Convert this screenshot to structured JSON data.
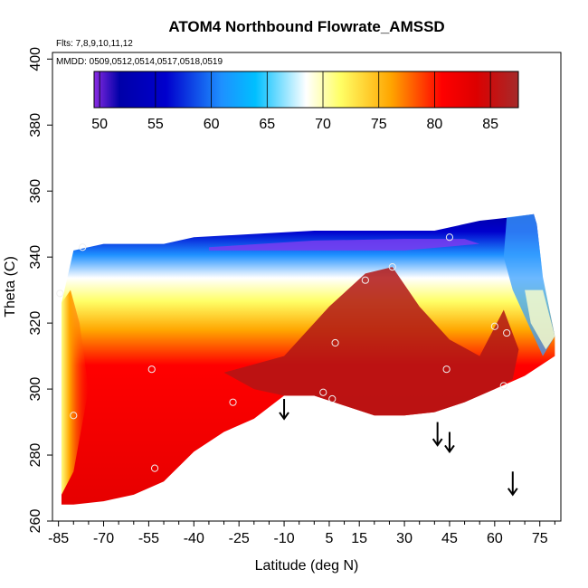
{
  "chart_data": {
    "type": "heatmap",
    "title": "ATOM4 Northbound Flowrate_AMSSD",
    "flights_note": "Flts: 7,8,9,10,11,12",
    "dates_note": "MMDD: 0509,0512,0514,0517,0518,0519",
    "xlabel": "Latitude (deg N)",
    "ylabel": "Theta (C)",
    "xlim": [
      -87,
      82
    ],
    "ylim": [
      260,
      402
    ],
    "x_ticks": [
      -85,
      -70,
      -55,
      -40,
      -25,
      -10,
      5,
      15,
      30,
      45,
      60,
      75
    ],
    "y_ticks": [
      260,
      280,
      300,
      320,
      340,
      360,
      380,
      400
    ],
    "colorbar": {
      "range": [
        49.5,
        87.5
      ],
      "ticks": [
        50,
        55,
        60,
        65,
        70,
        75,
        80,
        85
      ],
      "colors": [
        "#8a2be2",
        "#0000a8",
        "#0000cd",
        "#1e90ff",
        "#00bfff",
        "#ffffff",
        "#ffff66",
        "#ffa500",
        "#ff0000",
        "#dd0000",
        "#a52a2a"
      ]
    },
    "field_boundary": {
      "top": [
        [
          -84,
          326
        ],
        [
          -80,
          342
        ],
        [
          -70,
          344
        ],
        [
          -50,
          344
        ],
        [
          -40,
          346
        ],
        [
          -20,
          347
        ],
        [
          0,
          348
        ],
        [
          20,
          348
        ],
        [
          30,
          348
        ],
        [
          40,
          348
        ],
        [
          45,
          349
        ],
        [
          55,
          351
        ],
        [
          65,
          352
        ],
        [
          73,
          353
        ],
        [
          74,
          350
        ],
        [
          76,
          334
        ],
        [
          80,
          316
        ]
      ],
      "bottom": [
        [
          -84,
          265
        ],
        [
          -80,
          265
        ],
        [
          -70,
          266
        ],
        [
          -60,
          268
        ],
        [
          -50,
          272
        ],
        [
          -40,
          281
        ],
        [
          -30,
          287
        ],
        [
          -20,
          291
        ],
        [
          -10,
          298
        ],
        [
          0,
          298
        ],
        [
          10,
          295
        ],
        [
          20,
          292
        ],
        [
          30,
          292
        ],
        [
          40,
          293
        ],
        [
          50,
          296
        ],
        [
          60,
          300
        ],
        [
          70,
          304
        ],
        [
          80,
          310
        ]
      ]
    },
    "field_regions": [
      {
        "name": "upper-blue-band",
        "value": 55
      },
      {
        "name": "purple-core",
        "value": 50
      },
      {
        "name": "transition-band",
        "value": 70
      },
      {
        "name": "orange-band",
        "value": 77
      },
      {
        "name": "main-red-field",
        "value": 83
      },
      {
        "name": "dark-red-core",
        "value": 87
      }
    ],
    "sample_points": [
      [
        -84.5,
        329
      ],
      [
        -77,
        343
      ],
      [
        -80,
        292
      ],
      [
        -54,
        306
      ],
      [
        -53,
        276
      ],
      [
        -27,
        296
      ],
      [
        3,
        299
      ],
      [
        6,
        297
      ],
      [
        7,
        314
      ],
      [
        17,
        333
      ],
      [
        26,
        337
      ],
      [
        44,
        306
      ],
      [
        45,
        346
      ],
      [
        60,
        319
      ],
      [
        64,
        317
      ],
      [
        63,
        301
      ]
    ],
    "arrows": [
      {
        "lat": -10,
        "theta_top": 297,
        "theta_bottom": 291
      },
      {
        "lat": 41,
        "theta_top": 290,
        "theta_bottom": 283
      },
      {
        "lat": 45,
        "theta_top": 287,
        "theta_bottom": 281
      },
      {
        "lat": 66,
        "theta_top": 275,
        "theta_bottom": 268
      }
    ]
  }
}
